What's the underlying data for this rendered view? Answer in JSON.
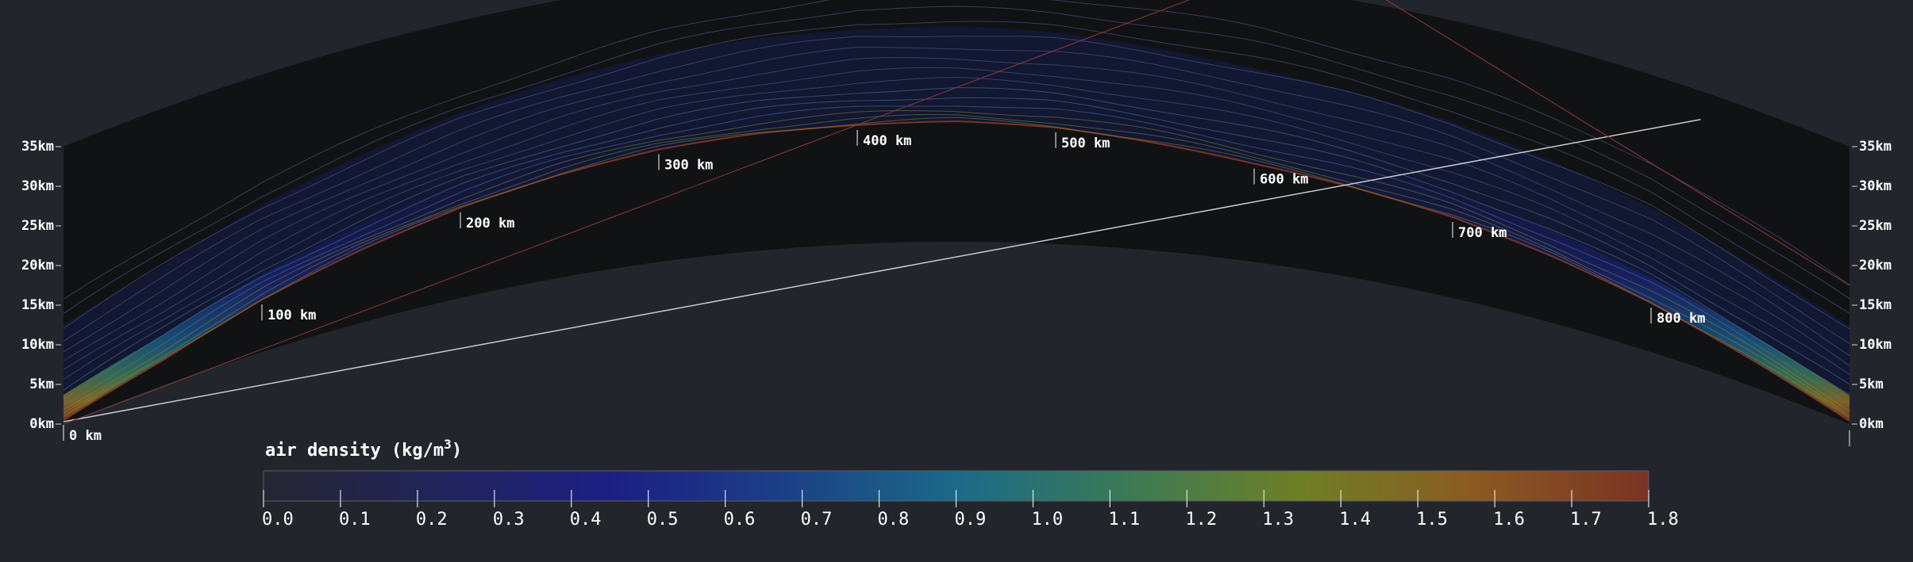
{
  "chart_data": {
    "type": "heatmap",
    "title": "",
    "xlabel": "",
    "ylabel": "",
    "x_unit": "km",
    "y_unit": "km",
    "xlim": [
      0,
      900
    ],
    "ylim": [
      0,
      35
    ],
    "x_ticks": [
      0,
      100,
      200,
      300,
      400,
      500,
      600,
      700,
      800
    ],
    "x_tick_labels": [
      "0 km",
      "100 km",
      "200 km",
      "300 km",
      "400 km",
      "500 km",
      "600 km",
      "700 km",
      "800 km"
    ],
    "y_ticks": [
      0,
      5,
      10,
      15,
      20,
      25,
      30,
      35
    ],
    "y_tick_labels": [
      "0km",
      "5km",
      "10km",
      "15km",
      "20km",
      "25km",
      "30km",
      "35km"
    ],
    "terrain": {
      "x": [
        0,
        50,
        100,
        150,
        200,
        250,
        300,
        350,
        400,
        450,
        500,
        550,
        600,
        650,
        700,
        750,
        800,
        850,
        900
      ],
      "elevation_km": [
        0.5,
        3.2,
        6.6,
        9.2,
        11.4,
        13.0,
        14.2,
        14.8,
        15.0,
        15.2,
        14.7,
        13.6,
        12.4,
        11.4,
        10.2,
        8.4,
        6.2,
        3.4,
        0.4
      ]
    },
    "contour_tops_km": {
      "x": [
        0,
        100,
        200,
        300,
        400,
        500,
        600,
        700,
        800,
        900
      ],
      "inner": [
        15.5,
        21.5,
        25.6,
        29.0,
        31.5,
        31.0,
        29.6,
        27.5,
        24.0,
        17.5
      ]
    },
    "sight_lines": [
      {
        "name": "white",
        "color": "#c8ccd2",
        "points": [
          [
            0,
            0.3
          ],
          [
            825,
            31.4
          ]
        ]
      },
      {
        "name": "red",
        "color": "#8a3a3a",
        "points": [
          [
            0,
            0.0
          ],
          [
            665,
            45.0
          ]
        ]
      },
      {
        "name": "red-right",
        "color": "#8a3a3a",
        "points": [
          [
            665,
            36.0
          ],
          [
            900,
            17.5
          ]
        ]
      }
    ],
    "colorbar": {
      "label": "air density  (kg/m",
      "label_exponent": "3",
      "label_suffix": ")",
      "min": 0.0,
      "max": 1.8,
      "ticks": [
        "0.0",
        "0.1",
        "0.2",
        "0.3",
        "0.4",
        "0.5",
        "0.6",
        "0.7",
        "0.8",
        "0.9",
        "1.0",
        "1.1",
        "1.2",
        "1.3",
        "1.4",
        "1.5",
        "1.6",
        "1.7",
        "1.8"
      ],
      "colors": [
        "#24262f",
        "#22235a",
        "#1c1f82",
        "#1c3f86",
        "#1b6a88",
        "#3c7a55",
        "#6f7f26",
        "#8a5a22",
        "#7a3324"
      ]
    }
  }
}
